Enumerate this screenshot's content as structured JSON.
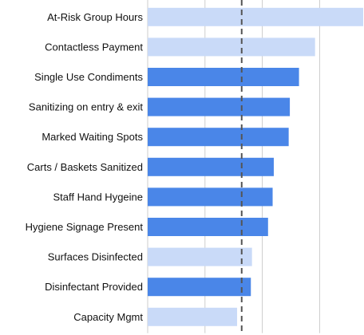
{
  "chart_data": {
    "type": "bar",
    "orientation": "horizontal",
    "categories": [
      "At-Risk Group Hours",
      "Contactless Payment",
      "Single Use Condiments",
      "Sanitizing on entry & exit",
      "Marked Waiting Spots",
      "Carts / Baskets Sanitized",
      "Staff Hand Hygeine",
      "Hygiene Signage Present",
      "Surfaces Disinfected",
      "Disinfectant Provided",
      "Capacity Mgmt"
    ],
    "values": [
      94,
      73,
      66,
      62,
      61.5,
      55,
      54.5,
      52.5,
      45.5,
      45,
      39
    ],
    "highlight": [
      false,
      false,
      true,
      true,
      true,
      true,
      true,
      true,
      false,
      true,
      false
    ],
    "reference_line": 41,
    "xlim": [
      0,
      94
    ],
    "grid": true,
    "title": "",
    "xlabel": "",
    "ylabel": "",
    "colors": {
      "highlight": "#4a86e8",
      "muted": "#c9daf8",
      "gridline": "#cccccc",
      "reference": "#555555"
    }
  }
}
